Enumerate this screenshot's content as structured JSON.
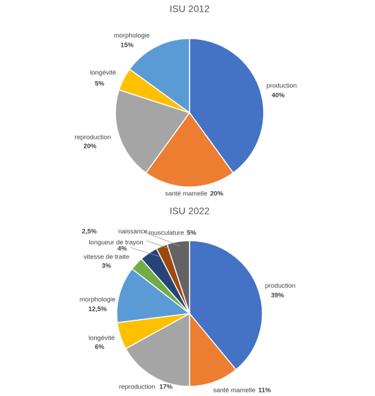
{
  "chart_data": [
    {
      "type": "pie",
      "title": "ISU 2012",
      "categories": [
        "production",
        "santé mamelle",
        "reproduction",
        "longévité",
        "morphologie"
      ],
      "values": [
        40,
        20,
        20,
        5,
        15
      ],
      "value_labels": [
        "40%",
        "20%",
        "20%",
        "5%",
        "15%"
      ],
      "colors": [
        "#4472c4",
        "#ed7d31",
        "#a5a5a5",
        "#ffc000",
        "#5b9bd5"
      ]
    },
    {
      "type": "pie",
      "title": "ISU 2022",
      "categories": [
        "production",
        "santé mamelle",
        "reproduction",
        "longévité",
        "morphologie",
        "vitesse de traite",
        "longueur de trayon",
        "naissance",
        "musculature"
      ],
      "values": [
        39,
        11,
        17,
        6,
        12.5,
        3,
        4,
        2.5,
        5
      ],
      "value_labels": [
        "39%",
        "11%",
        "17%",
        "6%",
        "12,5%",
        "3%",
        "4%",
        "2,5%",
        "5%"
      ],
      "colors": [
        "#4472c4",
        "#ed7d31",
        "#a5a5a5",
        "#ffc000",
        "#5b9bd5",
        "#70ad47",
        "#264478",
        "#9e480e",
        "#636363"
      ]
    }
  ]
}
